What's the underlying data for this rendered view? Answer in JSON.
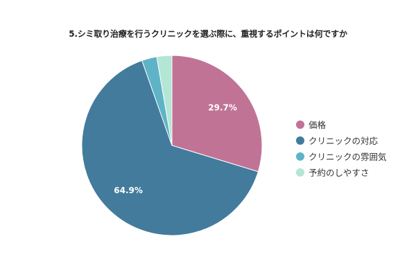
{
  "chart_data": {
    "type": "pie",
    "title": "5.シミ取り治療を行うクリニックを選ぶ際に、重視するポイントは何ですか",
    "categories": [
      "価格",
      "クリニックの対応",
      "クリニックの雰囲気",
      "予約のしやすさ"
    ],
    "values": [
      29.7,
      64.9,
      2.7,
      2.7
    ],
    "data_labels": [
      "29.7%",
      "64.9%",
      "",
      ""
    ],
    "colors": [
      "#c07395",
      "#437b9d",
      "#5fb3c6",
      "#b3e6d5"
    ],
    "legend_position": "right"
  }
}
